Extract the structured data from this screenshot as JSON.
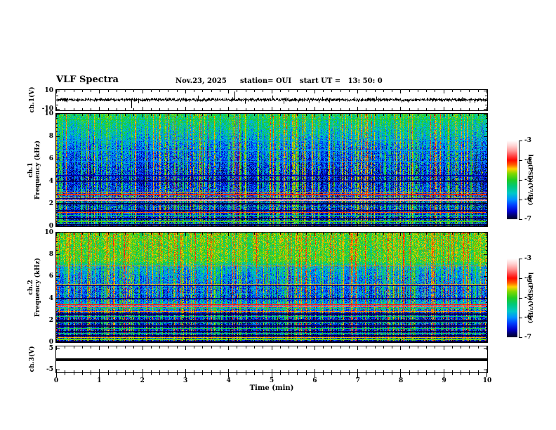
{
  "header": {
    "title": "VLF Spectra",
    "date": "Nov.23, 2025",
    "station": "station= OUI",
    "start_ut": "start UT =   13: 50: 0"
  },
  "axes": {
    "x": {
      "label": "Time (min)",
      "range": [
        0,
        10
      ],
      "tick_labels": [
        "0",
        "1",
        "2",
        "3",
        "4",
        "5",
        "6",
        "7",
        "8",
        "9",
        "10"
      ],
      "minor_step_min": 0.2
    },
    "sp_y": {
      "range_khz": [
        0,
        10
      ],
      "tick_labels": [
        "10",
        "8",
        "6",
        "4",
        "2",
        "0"
      ],
      "minor_step_khz": 0.4
    },
    "ch1_wave_y": {
      "range": [
        -10,
        10
      ],
      "tick_labels": [
        "10",
        "-10"
      ],
      "tick_values": [
        10,
        -10
      ]
    },
    "ch3_wave_y": {
      "range": [
        -5,
        5
      ],
      "tick_labels": [
        "5",
        "-5"
      ],
      "tick_values": [
        5,
        -5
      ]
    }
  },
  "left_labels": {
    "ch1_wave": "ch.1(V)",
    "sp1_line1": "ch.1",
    "sp1_line2": "Frequency (kHz)",
    "sp2_line1": "ch.2",
    "sp2_line2": "Frequency (kHz)",
    "ch3_wave": "ch.3(V)"
  },
  "colorbar": {
    "tick_labels": [
      "-3",
      "-4",
      "-5",
      "-6",
      "-7"
    ],
    "label": "log(PSD)(V²/Hz)",
    "value_max": -3,
    "value_min": -7,
    "stops": [
      [
        0,
        "#ffffff"
      ],
      [
        0.07,
        "#ffd0d0"
      ],
      [
        0.13,
        "#ff9898"
      ],
      [
        0.2,
        "#ff4040"
      ],
      [
        0.25,
        "#ff0800"
      ],
      [
        0.31,
        "#ff6000"
      ],
      [
        0.36,
        "#ffd000"
      ],
      [
        0.42,
        "#80d800"
      ],
      [
        0.5,
        "#22cc22"
      ],
      [
        0.58,
        "#00c878"
      ],
      [
        0.67,
        "#00c8c8"
      ],
      [
        0.75,
        "#0090ff"
      ],
      [
        0.82,
        "#0040ff"
      ],
      [
        0.9,
        "#0000cc"
      ],
      [
        0.96,
        "#000060"
      ],
      [
        1,
        "#000028"
      ]
    ]
  },
  "chart_data": [
    {
      "type": "line",
      "panel": "ch1_waveform",
      "ylabel": "ch.1(V)",
      "xlim": [
        0,
        10
      ],
      "ylim": [
        -10,
        10
      ],
      "baseline_v": 0,
      "noise_amp_v": 1.5,
      "seed": 3,
      "spikes": [
        {
          "t": 1.74,
          "v": -8.5
        },
        {
          "t": 2.54,
          "v": 2.5
        },
        {
          "t": 2.95,
          "v": 2.2
        },
        {
          "t": 4.13,
          "v": 9.0
        },
        {
          "t": 4.38,
          "v": -3.5
        },
        {
          "t": 5.33,
          "v": 2.6
        },
        {
          "t": 6.18,
          "v": 3.2
        },
        {
          "t": 6.33,
          "v": -2.2
        },
        {
          "t": 7.25,
          "v": 2.0
        },
        {
          "t": 8.6,
          "v": 2.2
        },
        {
          "t": 9.42,
          "v": 2.8
        }
      ]
    },
    {
      "type": "heatmap",
      "panel": "ch1_spectrogram",
      "xlim": [
        0,
        10
      ],
      "ylim_khz": [
        0,
        10
      ],
      "value_label": "log(PSD)(V²/Hz)",
      "vmin": -7,
      "vmax": -3,
      "seed": 7,
      "base_profile": [
        [
          0,
          -5.2
        ],
        [
          0.05,
          -5.35
        ],
        [
          0.18,
          -5.7
        ],
        [
          0.3,
          -6.1
        ],
        [
          0.45,
          -6.3
        ],
        [
          0.58,
          -6.5
        ],
        [
          0.7,
          -6.3
        ],
        [
          0.78,
          -6.4
        ],
        [
          1,
          -6.5
        ]
      ],
      "hlines": [
        [
          0.05,
          -5.1,
          1
        ],
        [
          0.24,
          -5.9,
          1
        ],
        [
          0.33,
          -5.9,
          1
        ],
        [
          0.42,
          -6.0,
          1
        ],
        [
          0.55,
          -6.7,
          2
        ],
        [
          0.6,
          -6.8,
          2
        ],
        [
          0.695,
          -4.3,
          1
        ],
        [
          0.715,
          -4.1,
          2
        ],
        [
          0.74,
          -4.4,
          1
        ],
        [
          0.755,
          -6.8,
          1
        ],
        [
          0.765,
          -3.5,
          2
        ],
        [
          0.785,
          -5.1,
          1
        ],
        [
          0.8,
          -6.9,
          2
        ],
        [
          0.83,
          -5.3,
          1
        ],
        [
          0.86,
          -6.8,
          2
        ],
        [
          0.88,
          -4.2,
          1
        ],
        [
          0.905,
          -5.4,
          1
        ],
        [
          0.93,
          -6.9,
          2
        ],
        [
          0.955,
          -4.9,
          2
        ],
        [
          0.975,
          -5.3,
          1
        ],
        [
          0.99,
          -6.9,
          2
        ]
      ],
      "streaks": {
        "count": 260,
        "vmin": -5.5,
        "vmax": -4.2
      }
    },
    {
      "type": "heatmap",
      "panel": "ch2_spectrogram",
      "xlim": [
        0,
        10
      ],
      "ylim_khz": [
        0,
        10
      ],
      "value_label": "log(PSD)(V²/Hz)",
      "vmin": -7,
      "vmax": -3,
      "seed": 13,
      "base_profile": [
        [
          0,
          -4.85
        ],
        [
          0.26,
          -4.95
        ],
        [
          0.31,
          -5.7
        ],
        [
          0.4,
          -5.95
        ],
        [
          0.52,
          -6.15
        ],
        [
          0.6,
          -6.3
        ],
        [
          0.645,
          -5.85
        ],
        [
          0.7,
          -6.0
        ],
        [
          0.73,
          -6.45
        ],
        [
          1,
          -6.5
        ]
      ],
      "hlines": [
        [
          0.3,
          -4.3,
          1
        ],
        [
          0.47,
          -4.4,
          1
        ],
        [
          0.485,
          -6.8,
          1
        ],
        [
          0.56,
          -5.6,
          1
        ],
        [
          0.6,
          -6.8,
          2
        ],
        [
          0.655,
          -4.0,
          1
        ],
        [
          0.67,
          -3.7,
          2
        ],
        [
          0.695,
          -5.0,
          1
        ],
        [
          0.72,
          -4.3,
          1
        ],
        [
          0.74,
          -6.9,
          2
        ],
        [
          0.77,
          -5.3,
          1
        ],
        [
          0.8,
          -6.9,
          3
        ],
        [
          0.825,
          -5.3,
          1
        ],
        [
          0.85,
          -6.9,
          2
        ],
        [
          0.875,
          -5.2,
          1
        ],
        [
          0.9,
          -6.9,
          2
        ],
        [
          0.925,
          -5.3,
          1
        ],
        [
          0.945,
          -6.9,
          2
        ],
        [
          0.96,
          -4.4,
          1
        ],
        [
          0.975,
          -4.8,
          2
        ],
        [
          0.995,
          -6.9,
          2
        ]
      ],
      "streaks": {
        "count": 260,
        "vmin": -5.3,
        "vmax": -4.0
      }
    },
    {
      "type": "line",
      "panel": "ch3_waveform",
      "ylabel": "ch.3(V)",
      "xlim": [
        0,
        10
      ],
      "ylim": [
        -5,
        5
      ],
      "constant_v": 0
    }
  ]
}
